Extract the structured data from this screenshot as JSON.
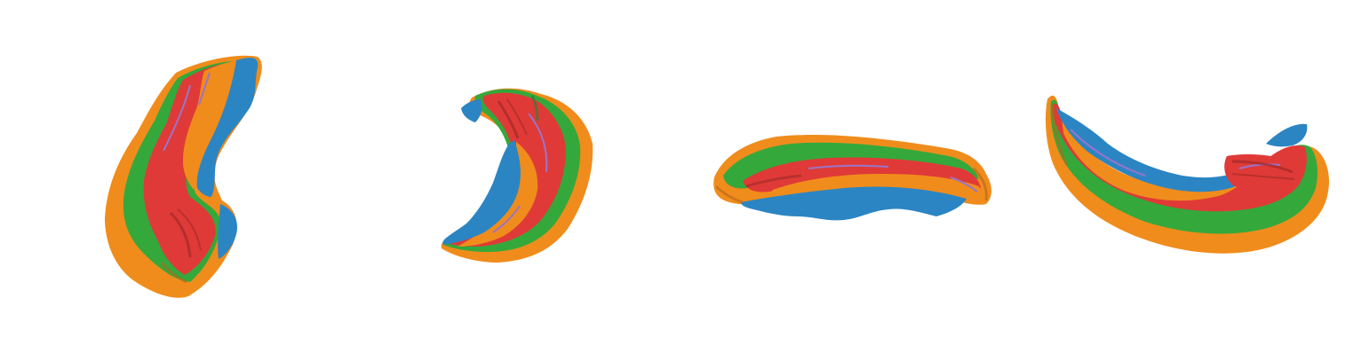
{
  "figure": {
    "background": "#ffffff",
    "subject": "surface-render",
    "views": [
      {
        "name": "view-1"
      },
      {
        "name": "view-2"
      },
      {
        "name": "view-3"
      },
      {
        "name": "view-4"
      }
    ],
    "colors": {
      "blue": "#2b85c3",
      "orange": "#f08c1c",
      "red": "#df3a37",
      "green": "#35a83b",
      "purple": "#9a74c9",
      "dark_shadow": "#b5651a"
    }
  }
}
